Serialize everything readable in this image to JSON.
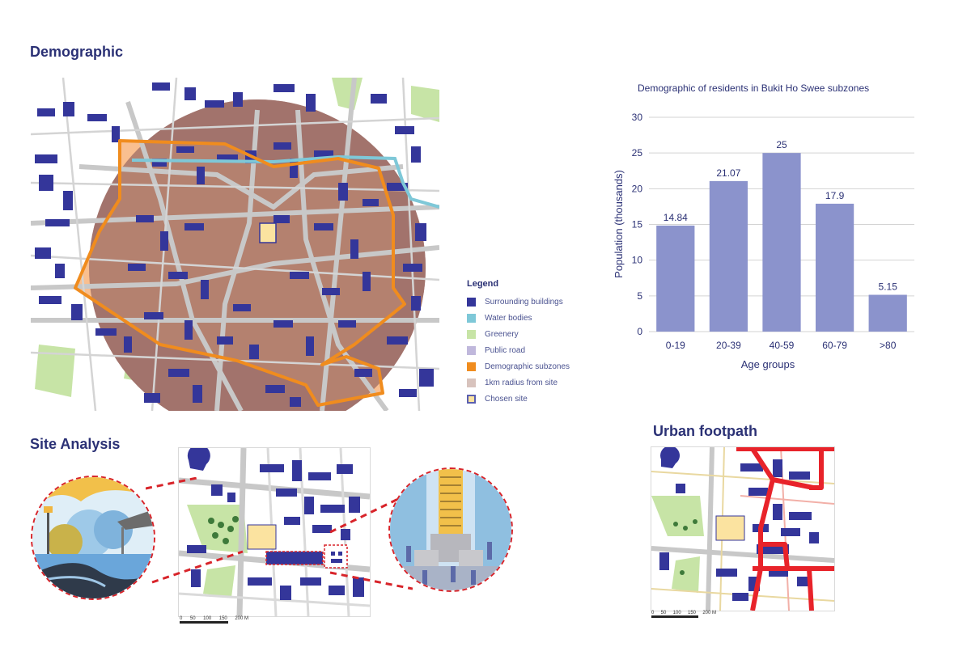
{
  "sections": {
    "demographic": "Demographic",
    "site_analysis": "Site Analysis",
    "urban_footpath": "Urban footpath"
  },
  "legend": {
    "title": "Legend",
    "items": [
      {
        "label": "Surrounding buildings",
        "color": "#34369a"
      },
      {
        "label": "Water bodies",
        "color": "#7ec8d8"
      },
      {
        "label": "Greenery",
        "color": "#c7e4a6"
      },
      {
        "label": "Public road",
        "color": "#c0b8dc"
      },
      {
        "label": "Demographic subzones",
        "color": "#f08c1e"
      },
      {
        "label": "1km radius from site",
        "color": "#d8c3bd"
      },
      {
        "label": "Chosen site",
        "color": "#fbe3a0"
      }
    ]
  },
  "scale_bar": {
    "labels": [
      "0",
      "50",
      "100",
      "150",
      "200 M"
    ]
  },
  "chart_data": {
    "type": "bar",
    "title": "Demographic of residents in Bukit Ho Swee subzones",
    "xlabel": "Age groups",
    "ylabel": "Population (thousands)",
    "categories": [
      "0-19",
      "20-39",
      "40-59",
      "60-79",
      ">80"
    ],
    "values": [
      14.84,
      21.07,
      25,
      17.9,
      5.15
    ],
    "value_labels": [
      "14.84",
      "21.07",
      "25",
      "17.9",
      "5.15"
    ],
    "yticks": [
      0,
      5,
      10,
      15,
      20,
      25,
      30
    ],
    "ylim": [
      0,
      30
    ],
    "grid": true,
    "bar_color": "#8b93cc"
  },
  "colors": {
    "building": "#34369a",
    "road": "#c8c8c8",
    "greenery": "#c7e4a6",
    "radius": "#a2736c",
    "subzone_fill": "#f8b47c",
    "subzone_line": "#f08c1e",
    "water": "#7ec8d8",
    "site": "#fbe3a0",
    "footpath": "#e8232a",
    "callout": "#d8242a"
  }
}
